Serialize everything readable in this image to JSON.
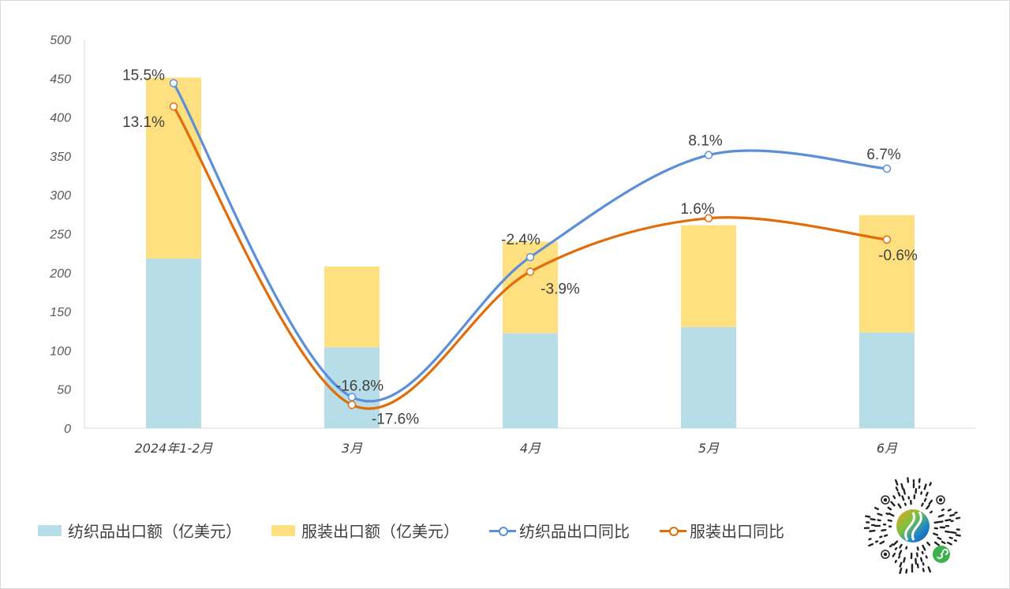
{
  "chart_data": {
    "type": "bar+line",
    "categories": [
      "2024年1-2月",
      "3月",
      "4月",
      "5月",
      "6月"
    ],
    "y_axis": {
      "ylim": [
        0,
        500
      ],
      "ticks": [
        "0",
        "50",
        "100",
        "150",
        "200",
        "250",
        "300",
        "350",
        "400",
        "450",
        "500"
      ]
    },
    "secondary_axis_hidden": {
      "ylim": [
        -20,
        20
      ],
      "unit": "%"
    },
    "bar_series": [
      {
        "name": "纺织品出口额（亿美元）",
        "color": "#b7dde8",
        "values": [
          218,
          104,
          122,
          130,
          123
        ]
      },
      {
        "name": "服装出口额（亿美元）",
        "color": "#ffe081",
        "values": [
          233,
          104,
          118,
          131,
          151
        ]
      }
    ],
    "line_series": [
      {
        "name": "纺织品出口同比",
        "color": "#5b8fd9",
        "values": [
          15.5,
          -16.8,
          -2.4,
          8.1,
          6.7
        ],
        "labels": [
          "15.5%",
          "-16.8%",
          "-2.4%",
          "8.1%",
          "6.7%"
        ]
      },
      {
        "name": "服装出口同比",
        "color": "#e36c0a",
        "values": [
          13.1,
          -17.6,
          -3.9,
          1.6,
          -0.6
        ],
        "labels": [
          "13.1%",
          "-17.6%",
          "-3.9%",
          "1.6%",
          "-0.6%"
        ]
      }
    ],
    "legend_position": "bottom",
    "grid": false
  }
}
